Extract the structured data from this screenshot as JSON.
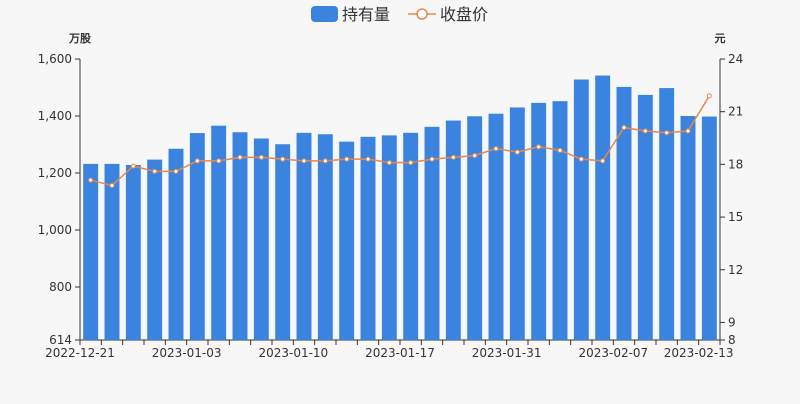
{
  "chart_data": {
    "type": "bar+line",
    "legend": {
      "placement": "top-center",
      "items": [
        {
          "label": "持有量",
          "symbol": "bar"
        },
        {
          "label": "收盘价",
          "symbol": "line"
        }
      ]
    },
    "y_left": {
      "unit": "万股",
      "min": 614,
      "max": 1600,
      "ticks": [
        614,
        800,
        1000,
        1200,
        1400,
        1600
      ],
      "tick_labels": [
        "614",
        "800",
        "1,000",
        "1,200",
        "1,400",
        "1,600"
      ]
    },
    "y_right": {
      "unit": "元",
      "min": 8,
      "max": 24,
      "ticks": [
        8,
        9,
        12,
        15,
        18,
        21,
        24
      ],
      "tick_labels": [
        "8",
        "9",
        "12",
        "15",
        "18",
        "21",
        "24"
      ]
    },
    "x_tick_labels": [
      {
        "index": 0,
        "label": "2022-12-21"
      },
      {
        "index": 5,
        "label": "2023-01-03"
      },
      {
        "index": 10,
        "label": "2023-01-10"
      },
      {
        "index": 15,
        "label": "2023-01-17"
      },
      {
        "index": 20,
        "label": "2023-01-31"
      },
      {
        "index": 25,
        "label": "2023-02-07"
      },
      {
        "index": 29,
        "label": "2023-02-13"
      }
    ],
    "series": [
      {
        "name": "持有量",
        "type": "bar",
        "axis": "left",
        "color": "#3a84e0",
        "values": [
          1232,
          1232,
          1228,
          1247,
          1285,
          1340,
          1366,
          1343,
          1321,
          1301,
          1341,
          1336,
          1310,
          1327,
          1332,
          1341,
          1362,
          1384,
          1399,
          1408,
          1430,
          1446,
          1452,
          1528,
          1542,
          1502,
          1474,
          1498,
          1400,
          1398
        ]
      },
      {
        "name": "收盘价",
        "type": "line",
        "axis": "right",
        "color": "#e8884a",
        "values": [
          17.1,
          16.8,
          17.9,
          17.6,
          17.6,
          18.2,
          18.2,
          18.4,
          18.4,
          18.3,
          18.2,
          18.2,
          18.3,
          18.3,
          18.1,
          18.1,
          18.3,
          18.4,
          18.5,
          18.9,
          18.7,
          19.0,
          18.8,
          18.3,
          18.2,
          20.1,
          19.9,
          19.8,
          19.9,
          21.9
        ]
      }
    ]
  }
}
